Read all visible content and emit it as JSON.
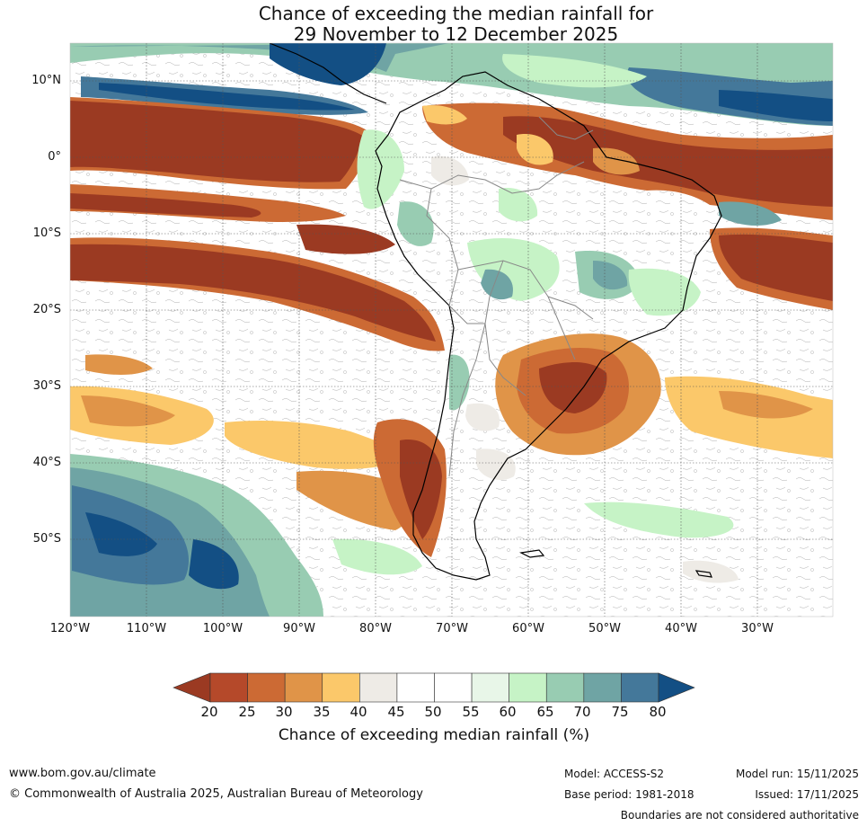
{
  "title": {
    "line1": "Chance of exceeding the median rainfall for",
    "line2": "29 November to 12 December 2025"
  },
  "map": {
    "region": "South America",
    "lat_labels": [
      "10°N",
      "0°",
      "10°S",
      "20°S",
      "30°S",
      "40°S",
      "50°S"
    ],
    "lon_labels": [
      "120°W",
      "110°W",
      "100°W",
      "90°W",
      "80°W",
      "70°W",
      "60°W",
      "50°W",
      "40°W",
      "30°W"
    ]
  },
  "colorbar": {
    "ticks": [
      "20",
      "25",
      "30",
      "35",
      "40",
      "45",
      "50",
      "55",
      "60",
      "65",
      "70",
      "75",
      "80"
    ],
    "colors": [
      "#9b3a22",
      "#b5492a",
      "#cc6a34",
      "#e09448",
      "#fbc86a",
      "#eeebe6",
      "#ffffff",
      "#ffffff",
      "#e8f6e8",
      "#c6f3c6",
      "#98ccb2",
      "#6fa4a4",
      "#44789a",
      "#134f84"
    ],
    "label": "Chance of exceeding median rainfall (%)"
  },
  "footer": {
    "website": "www.bom.gov.au/climate",
    "copyright": "© Commonwealth of Australia 2025, Australian Bureau of Meteorology",
    "model": "Model: ACCESS-S2",
    "base_period": "Base period: 1981-2018",
    "model_run": "Model run: 15/11/2025",
    "issued": "Issued: 17/11/2025",
    "disclaimer": "Boundaries are not considered authoritative"
  }
}
